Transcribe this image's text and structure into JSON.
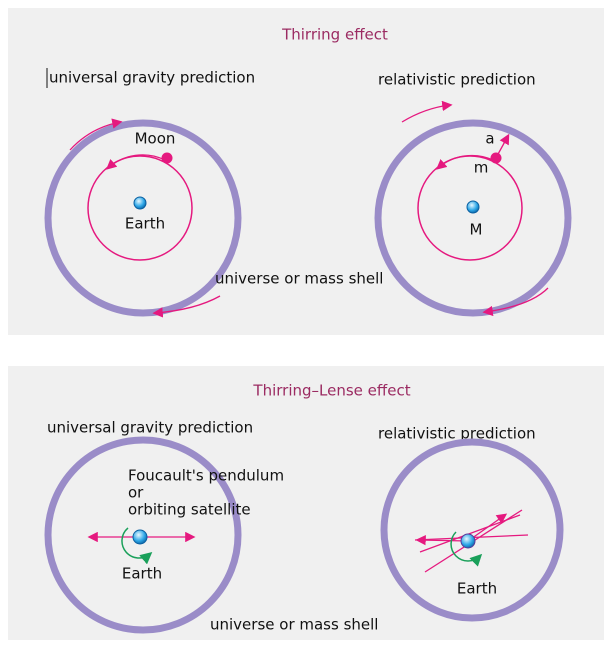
{
  "panels": [
    {
      "title": "Thirring effect",
      "left": {
        "caption": "universal gravity prediction",
        "moon": "Moon",
        "earth": "Earth"
      },
      "right": {
        "caption": "relativistic prediction",
        "a": "a",
        "m": "m",
        "center": "M"
      },
      "shell": "universe or mass shell"
    },
    {
      "title": "Thirring–Lense effect",
      "left": {
        "caption": "universal gravity prediction",
        "pendulum": [
          "Foucault's pendulum",
          "or",
          "orbiting satellite"
        ],
        "earth": "Earth"
      },
      "right": {
        "caption": "relativistic prediction",
        "earth": "Earth"
      },
      "shell": "universe or mass shell"
    }
  ]
}
